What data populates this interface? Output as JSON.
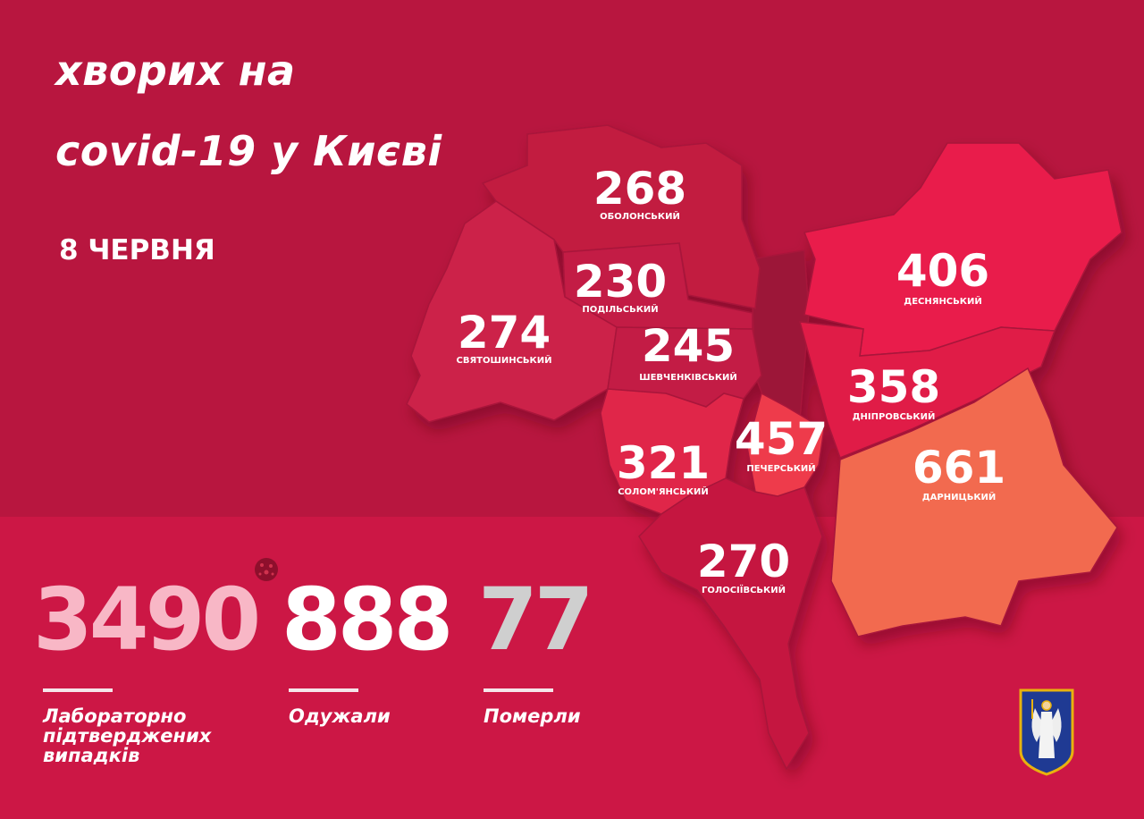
{
  "title": {
    "line1": "хворих на",
    "line2": "covid-19 у Києві"
  },
  "date": "8 ЧЕРВНЯ",
  "districts": [
    {
      "name": "ОБОЛОНСЬКИЙ",
      "value": "268",
      "color": "#c21a40"
    },
    {
      "name": "ПОДІЛЬСЬКИЙ",
      "value": "230",
      "color": "#c31a45"
    },
    {
      "name": "СВЯТОШИНСЬКИЙ",
      "value": "274",
      "color": "#cc2049"
    },
    {
      "name": "ШЕВЧЕНКІВСЬКИЙ",
      "value": "245",
      "color": "#c31b45"
    },
    {
      "name": "СОЛОМ'ЯНСЬКИЙ",
      "value": "321",
      "color": "#e0284a"
    },
    {
      "name": "ПЕЧЕРСЬКИЙ",
      "value": "457",
      "color": "#ee3b4b"
    },
    {
      "name": "ГОЛОСІЇВСЬКИЙ",
      "value": "270",
      "color": "#c5183f"
    },
    {
      "name": "ДЕСНЯНСЬКИЙ",
      "value": "406",
      "color": "#e91f4b"
    },
    {
      "name": "ДНІПРОВСЬКИЙ",
      "value": "358",
      "color": "#e01b47"
    },
    {
      "name": "ДАРНИЦЬКИЙ",
      "value": "661",
      "color": "#f26a50"
    }
  ],
  "totals": {
    "confirmed": {
      "value": "3490",
      "label_lines": [
        "Лабораторно",
        "підтверджених",
        "випадків"
      ],
      "color": "#f8b7c6"
    },
    "recovered": {
      "value": "888",
      "label": "Одужали",
      "color": "#ffffff"
    },
    "deaths": {
      "value": "77",
      "label": "Померли",
      "color": "#cfcfcf"
    }
  },
  "icons": {
    "virus": "virus-icon",
    "emblem": "kyiv-coat-of-arms"
  }
}
